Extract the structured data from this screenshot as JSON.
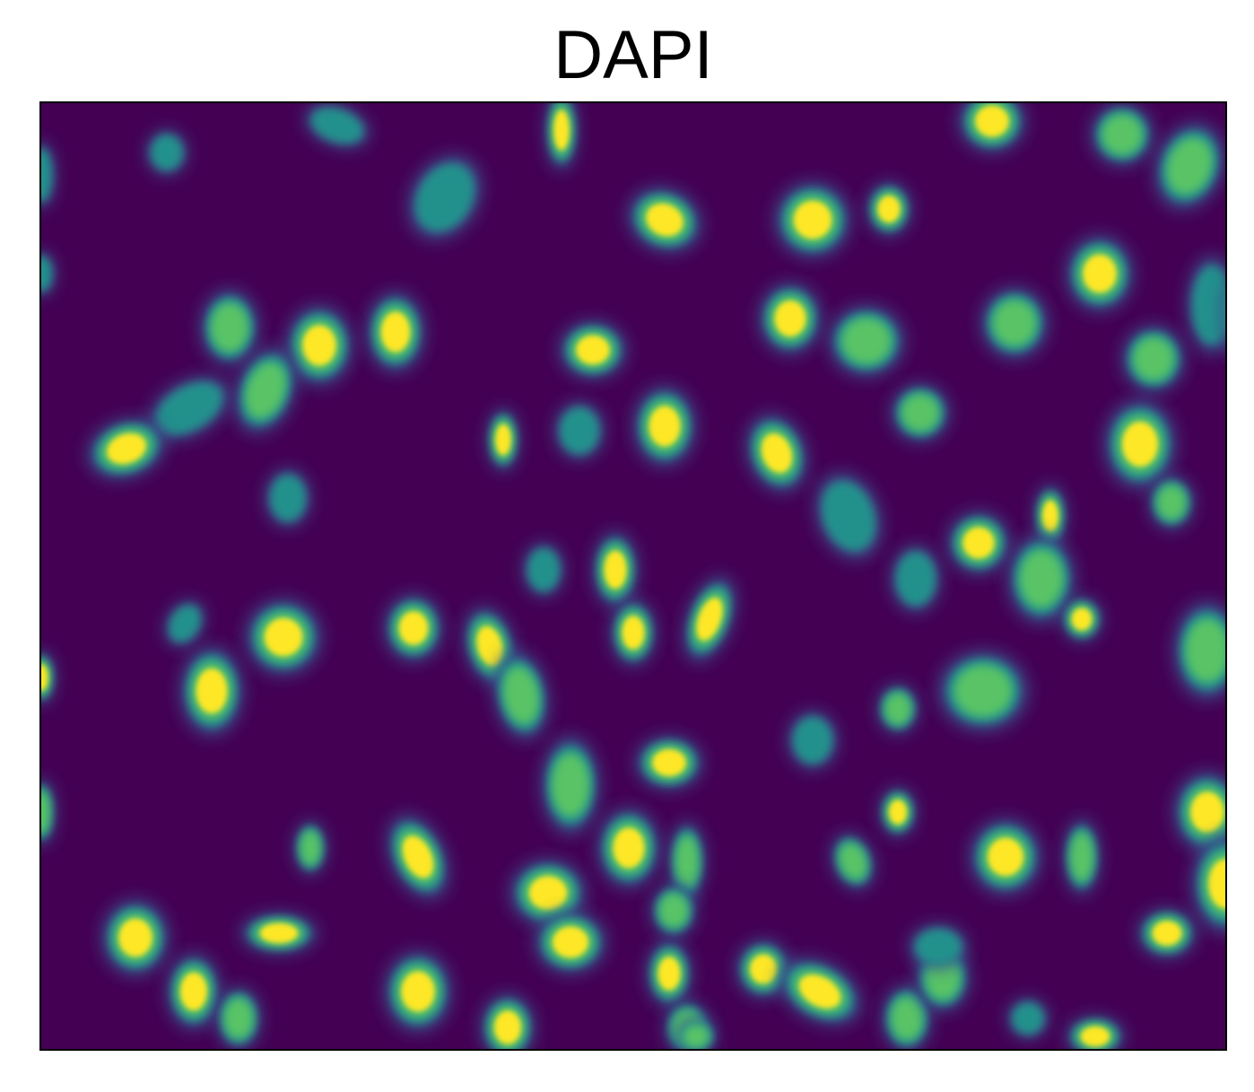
{
  "figure": {
    "title": "DAPI",
    "colormap": "viridis",
    "colors": {
      "background": "#440154",
      "low": "#3b528b",
      "mid": "#21918c",
      "high": "#5ec962",
      "peak": "#fde725"
    }
  }
}
